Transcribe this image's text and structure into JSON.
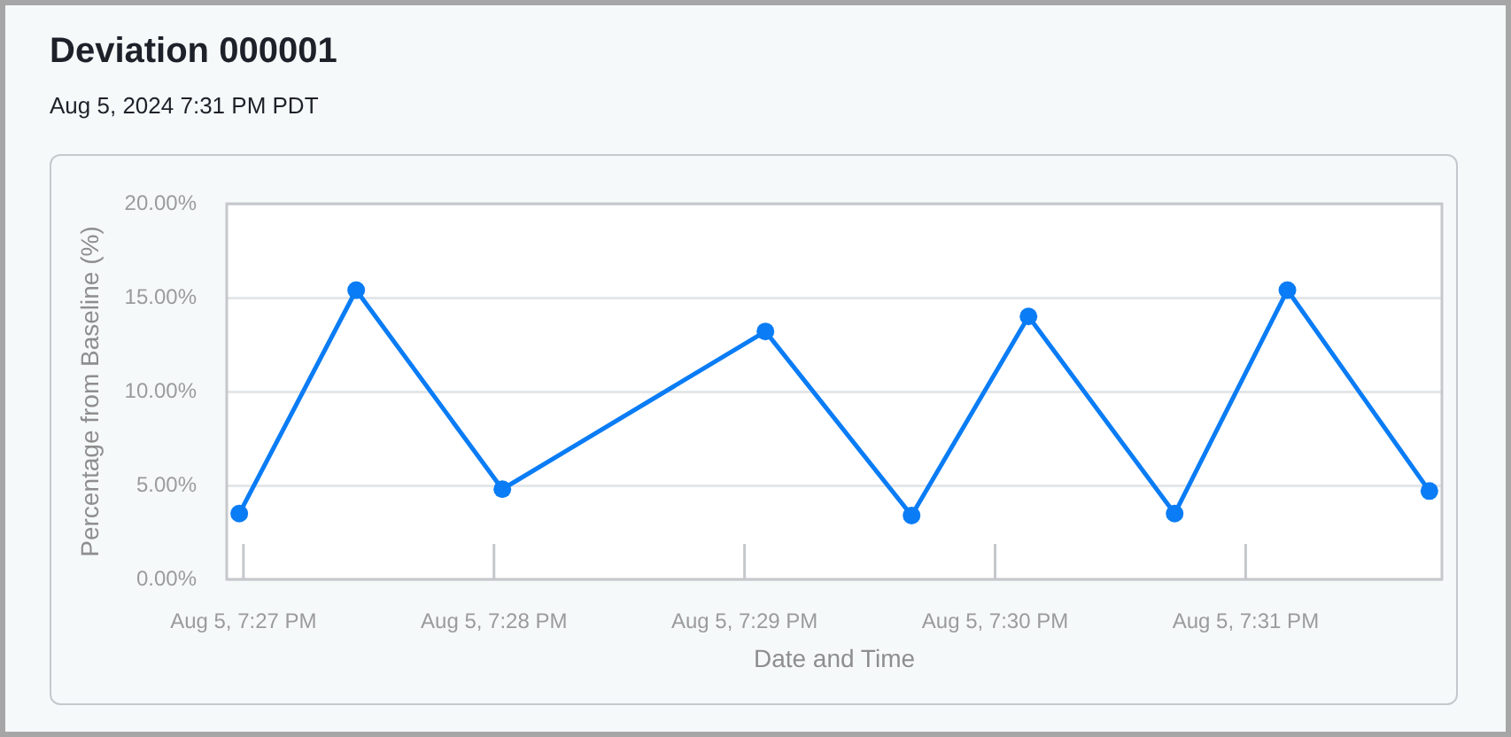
{
  "chart_data": {
    "type": "line",
    "title": "Deviation 000001",
    "subtitle": "Aug 5, 2024 7:31 PM PDT",
    "xlabel": "Date and Time",
    "ylabel": "Percentage from Baseline (%)",
    "x": [
      "2024-08-05T19:26:59",
      "2024-08-05T19:27:27",
      "2024-08-05T19:28:02",
      "2024-08-05T19:29:05",
      "2024-08-05T19:29:40",
      "2024-08-05T19:30:08",
      "2024-08-05T19:30:43",
      "2024-08-05T19:31:10",
      "2024-08-05T19:31:44"
    ],
    "series": [
      {
        "color": "#0a7cf5",
        "values": [
          3.5,
          15.4,
          4.8,
          13.2,
          3.4,
          14.0,
          3.5,
          15.4,
          4.7
        ]
      }
    ],
    "xlim": [
      "2024-08-05T19:26:56",
      "2024-08-05T19:31:47"
    ],
    "xticks": [
      {
        "value": "2024-08-05T19:27",
        "label": "Aug 5, 7:27 PM"
      },
      {
        "value": "2024-08-05T19:28",
        "label": "Aug 5, 7:28 PM"
      },
      {
        "value": "2024-08-05T19:29",
        "label": "Aug 5, 7:29 PM"
      },
      {
        "value": "2024-08-05T19:30",
        "label": "Aug 5, 7:30 PM"
      },
      {
        "value": "2024-08-05T19:31",
        "label": "Aug 5, 7:31 PM"
      }
    ],
    "ylim": [
      0,
      20
    ],
    "yticks": [
      {
        "value": 0,
        "label": "0.00%"
      },
      {
        "value": 5,
        "label": "5.00%"
      },
      {
        "value": 10,
        "label": "10.00%"
      },
      {
        "value": 15,
        "label": "15.00%"
      },
      {
        "value": 20,
        "label": "20.00%"
      }
    ],
    "grid": "y",
    "legend": false,
    "marker": "circle",
    "line_style": "solid"
  }
}
